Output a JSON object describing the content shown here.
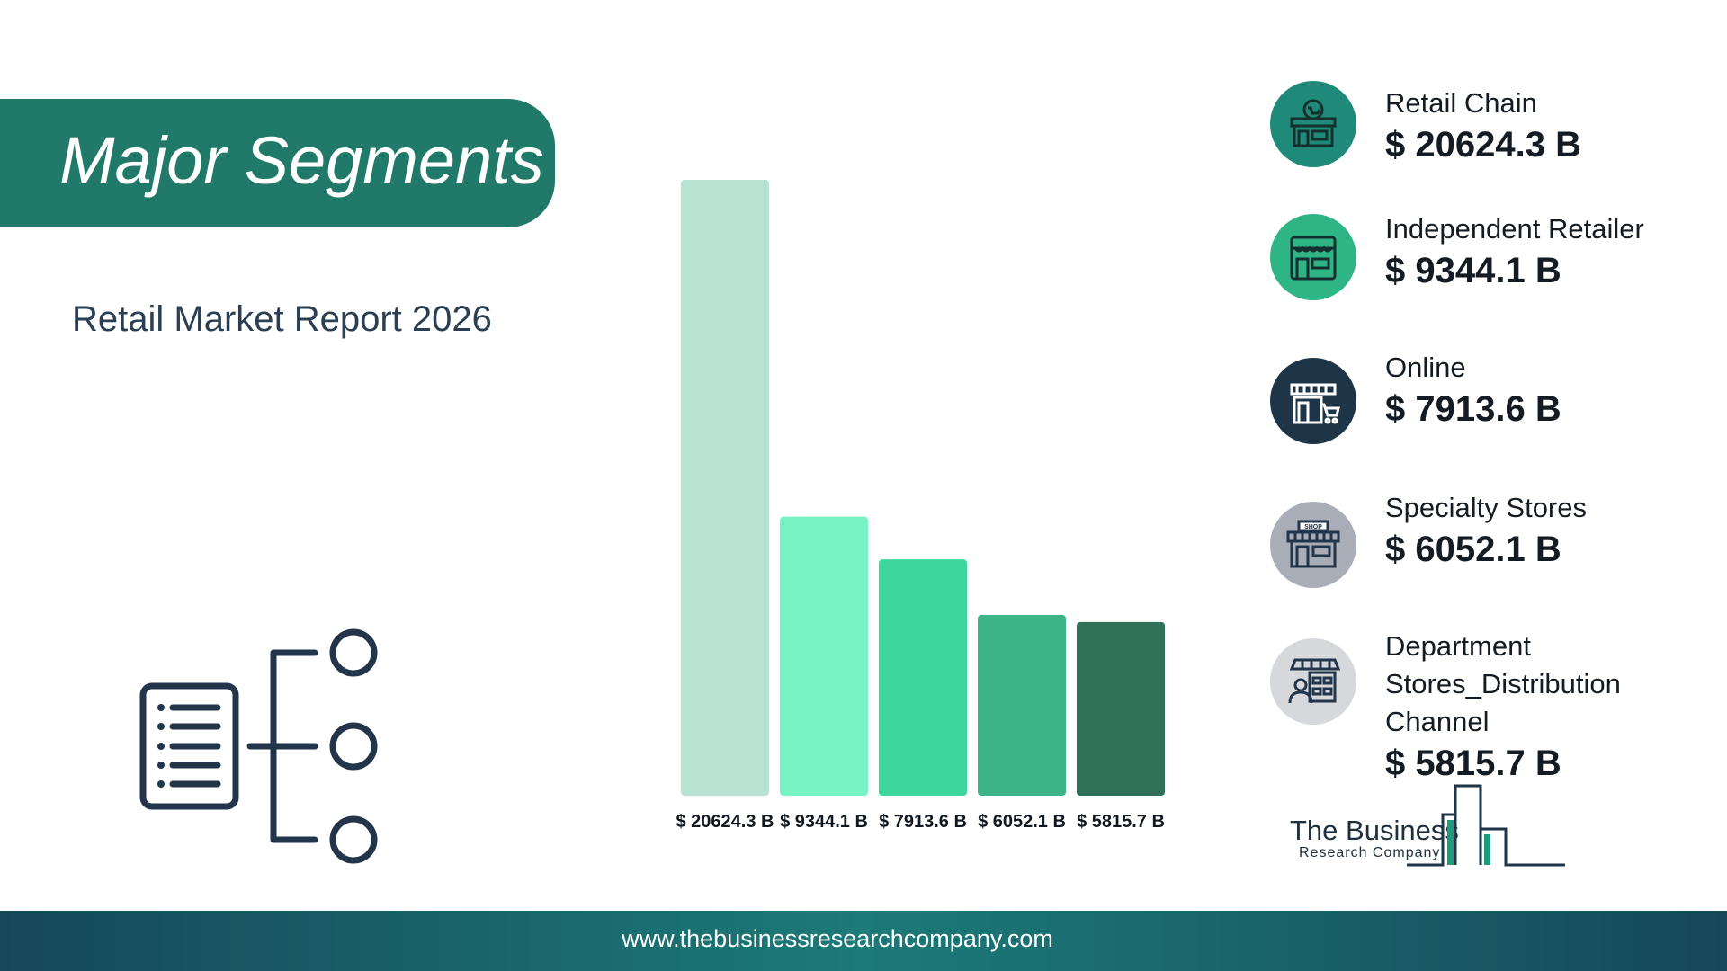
{
  "header": {
    "title": "Major Segments",
    "subtitle": "Retail Market Report 2026"
  },
  "chart_data": {
    "type": "bar",
    "categories": [
      "Retail Chain",
      "Independent Retailer",
      "Online",
      "Specialty Stores",
      "Department Stores_Distribution Channel"
    ],
    "values": [
      20624.3,
      9344.1,
      7913.6,
      6052.1,
      5815.7
    ],
    "value_labels": [
      "$ 20624.3 B",
      "$ 9344.1 B",
      "$ 7913.6 B",
      "$ 6052.1 B",
      "$ 5815.7 B"
    ],
    "colors": [
      "#b8e3d3",
      "#79f3c4",
      "#3dd69c",
      "#3db588",
      "#2e7158"
    ],
    "grid": false,
    "legend": "right"
  },
  "legend": {
    "items": [
      {
        "name": "Retail Chain",
        "value": "$ 20624.3 B",
        "icon": "retail-chain-store-icon",
        "color": "#1f8a79"
      },
      {
        "name": "Independent Retailer",
        "value": "$ 9344.1 B",
        "icon": "independent-retailer-store-icon",
        "color": "#2fb585"
      },
      {
        "name": "Online",
        "value": "$ 7913.6 B",
        "icon": "online-store-cart-icon",
        "color": "#1e3447"
      },
      {
        "name": "Specialty Stores",
        "value": "$ 6052.1 B",
        "icon": "specialty-shop-icon",
        "color": "#a9adb7"
      },
      {
        "name": "Department Stores_Distribution Channel",
        "value": "$ 5815.7 B",
        "icon": "department-store-icon",
        "color": "#d6d8dc"
      }
    ]
  },
  "brand": {
    "line1": "The Business",
    "line2": "Research Company"
  },
  "footer": {
    "url": "www.thebusinessresearchcompany.com"
  }
}
